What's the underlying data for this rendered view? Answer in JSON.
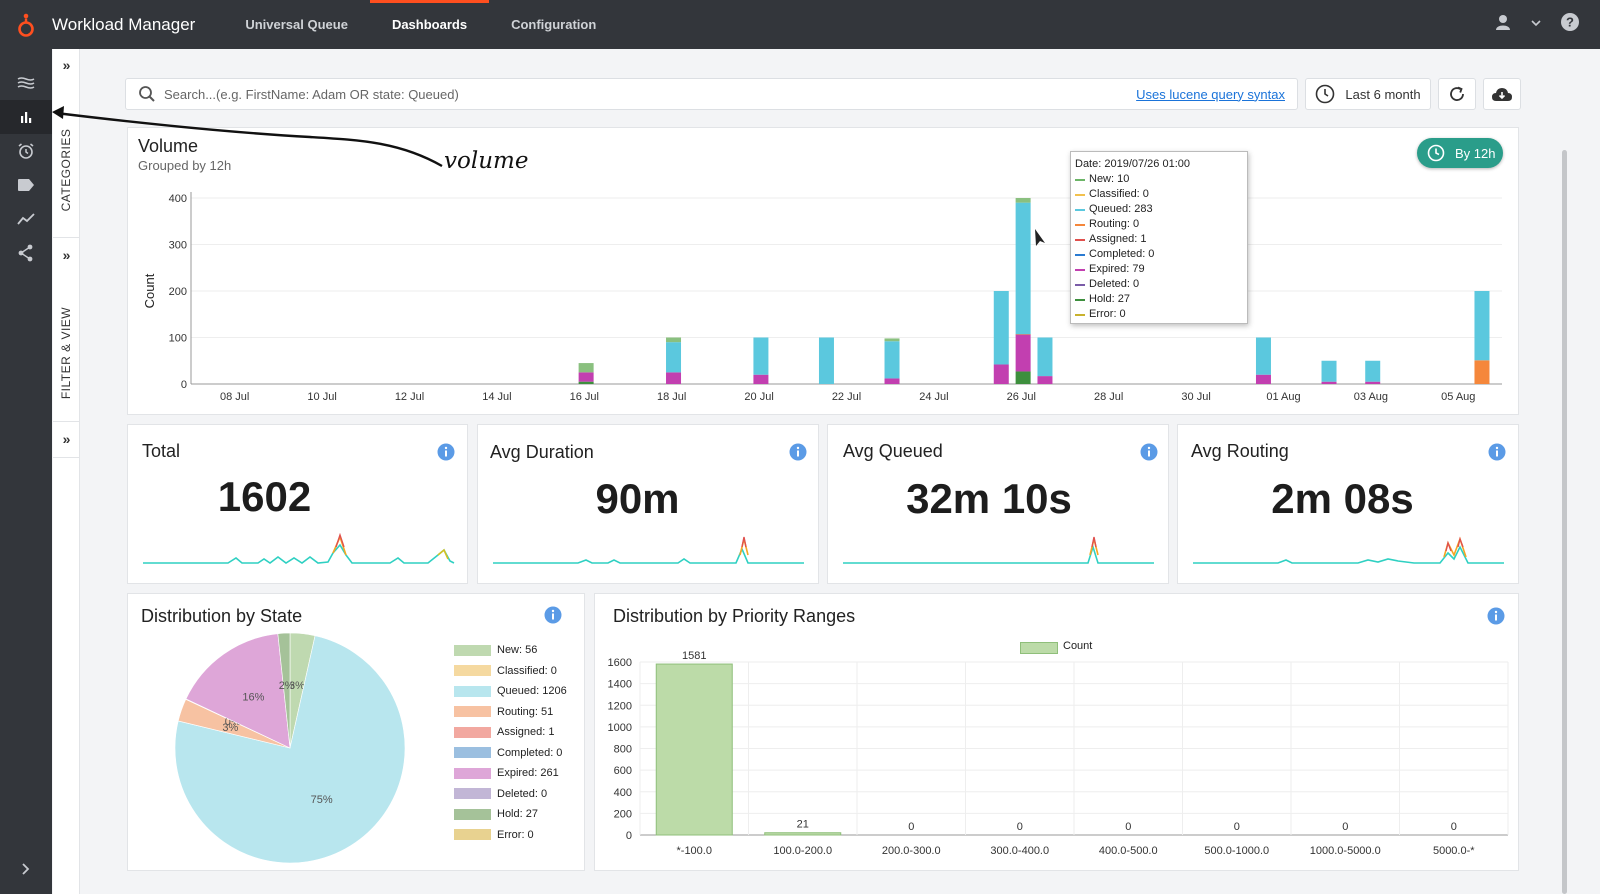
{
  "app": {
    "title": "Workload Manager"
  },
  "nav": {
    "tabs": [
      {
        "label": "Universal Queue"
      },
      {
        "label": "Dashboards"
      },
      {
        "label": "Configuration"
      }
    ]
  },
  "sidepanel": {
    "categories_label": "CATEGORIES",
    "filter_label": "FILTER & VIEW"
  },
  "search": {
    "placeholder": "Search...(e.g. FirstName: Adam OR state: Queued)",
    "value": "",
    "lucene_link": "Uses lucene query syntax"
  },
  "toolbar": {
    "time_range": "Last 6 month"
  },
  "volume": {
    "title": "Volume",
    "subtitle": "Grouped by 12h",
    "ylabel": "Count",
    "group_badge": "By 12h",
    "annotation": "volume",
    "tooltip": {
      "date": "Date: 2019/07/26 01:00",
      "rows": [
        {
          "label": "New: 10",
          "color": "#6cb567"
        },
        {
          "label": "Classified: 0",
          "color": "#f2c14e"
        },
        {
          "label": "Queued: 283",
          "color": "#5bc8de"
        },
        {
          "label": "Routing: 0",
          "color": "#f5873b"
        },
        {
          "label": "Assigned: 1",
          "color": "#e0504d"
        },
        {
          "label": "Completed: 0",
          "color": "#2b7bd2"
        },
        {
          "label": "Expired: 79",
          "color": "#c23fb0"
        },
        {
          "label": "Deleted: 0",
          "color": "#7a5ca8"
        },
        {
          "label": "Hold: 27",
          "color": "#3d8f3d"
        },
        {
          "label": "Error: 0",
          "color": "#c9b22e"
        }
      ]
    }
  },
  "chart_data": [
    {
      "type": "bar",
      "stacked": true,
      "ylim": [
        0,
        400
      ],
      "yticks": [
        0,
        100,
        200,
        300,
        400
      ],
      "xlim": [
        "2019-07-07",
        "2019-08-06"
      ],
      "xticks": [
        "08 Jul",
        "10 Jul",
        "12 Jul",
        "14 Jul",
        "16 Jul",
        "18 Jul",
        "20 Jul",
        "22 Jul",
        "24 Jul",
        "26 Jul",
        "28 Jul",
        "30 Jul",
        "01 Aug",
        "03 Aug",
        "05 Aug"
      ],
      "xtick_dates": [
        "2019-07-08",
        "2019-07-10",
        "2019-07-12",
        "2019-07-14",
        "2019-07-16",
        "2019-07-18",
        "2019-07-20",
        "2019-07-22",
        "2019-07-24",
        "2019-07-26",
        "2019-07-28",
        "2019-07-30",
        "2019-08-01",
        "2019-08-03",
        "2019-08-05"
      ],
      "series_colors": {
        "Expired": "#c23fb0",
        "Queued": "#5bc8de",
        "Routing": "#f5873b",
        "Hold": "#3d8f3d",
        "New": "#8ac07f",
        "Classified": "#c9b22e"
      },
      "bars": [
        {
          "x": "2019-07-16 01:00",
          "Expired": 20,
          "Queued": 0,
          "Hold": 5,
          "New": 20
        },
        {
          "x": "2019-07-18 01:00",
          "Expired": 25,
          "Queued": 65,
          "New": 10
        },
        {
          "x": "2019-07-20 01:00",
          "Expired": 20,
          "Queued": 80
        },
        {
          "x": "2019-07-21 13:00",
          "Queued": 100
        },
        {
          "x": "2019-07-23 01:00",
          "Expired": 12,
          "Queued": 80,
          "New": 6
        },
        {
          "x": "2019-07-25 13:00",
          "Expired": 42,
          "Queued": 158
        },
        {
          "x": "2019-07-26 01:00",
          "Hold": 27,
          "Expired": 79,
          "Assigned": 1,
          "Queued": 283,
          "New": 10
        },
        {
          "x": "2019-07-26 13:00",
          "Expired": 17,
          "Queued": 83
        },
        {
          "x": "2019-07-31 13:00",
          "Expired": 20,
          "Queued": 80
        },
        {
          "x": "2019-08-02 01:00",
          "Expired": 5,
          "Queued": 45
        },
        {
          "x": "2019-08-03 01:00",
          "Expired": 5,
          "Queued": 45
        },
        {
          "x": "2019-08-05 13:00",
          "Routing": 51,
          "Queued": 149
        }
      ]
    },
    {
      "type": "pie",
      "slices": [
        {
          "label": "New",
          "value": 56,
          "color": "#bfd9b0",
          "pct_label": "3%"
        },
        {
          "label": "Classified",
          "value": 0,
          "color": "#f5d9a0",
          "pct_label": ""
        },
        {
          "label": "Queued",
          "value": 1206,
          "color": "#b8e6ee",
          "pct_label": "75%"
        },
        {
          "label": "Routing",
          "value": 51,
          "color": "#f7c2a2",
          "pct_label": "3%"
        },
        {
          "label": "Assigned",
          "value": 1,
          "color": "#f2a8a0",
          "pct_label": "0%"
        },
        {
          "label": "Completed",
          "value": 0,
          "color": "#9bbfe0",
          "pct_label": ""
        },
        {
          "label": "Expired",
          "value": 261,
          "color": "#dea6d8",
          "pct_label": "16%"
        },
        {
          "label": "Deleted",
          "value": 0,
          "color": "#c2b6d6",
          "pct_label": ""
        },
        {
          "label": "Hold",
          "value": 27,
          "color": "#a5c299",
          "pct_label": "2%"
        },
        {
          "label": "Error",
          "value": 0,
          "color": "#e8d290",
          "pct_label": ""
        }
      ]
    },
    {
      "type": "bar",
      "title": "Distribution by Priority Ranges",
      "legend": "Count",
      "categories": [
        "*-100.0",
        "100.0-200.0",
        "200.0-300.0",
        "300.0-400.0",
        "400.0-500.0",
        "500.0-1000.0",
        "1000.0-5000.0",
        "5000.0-*"
      ],
      "values": [
        1581,
        21,
        0,
        0,
        0,
        0,
        0,
        0
      ],
      "ylim": [
        0,
        1600
      ],
      "yticks": [
        0,
        200,
        400,
        600,
        800,
        1000,
        1200,
        1400,
        1600
      ],
      "color": "#bcdba8"
    }
  ],
  "kpis": [
    {
      "title": "Total",
      "value": "1602"
    },
    {
      "title": "Avg Duration",
      "value": "90m"
    },
    {
      "title": "Avg Queued",
      "value": "32m 10s"
    },
    {
      "title": "Avg Routing",
      "value": "2m 08s"
    }
  ],
  "distribution_state": {
    "title": "Distribution by State",
    "legend": [
      "New: 56",
      "Classified: 0",
      "Queued: 1206",
      "Routing: 51",
      "Assigned: 1",
      "Completed: 0",
      "Expired: 261",
      "Deleted: 0",
      "Hold: 27",
      "Error: 0"
    ]
  },
  "distribution_priority": {
    "title": "Distribution by Priority Ranges",
    "legend": "Count"
  },
  "colors": {
    "accent": "#ff4f1f",
    "teal": "#2a9d8a",
    "info": "#4a90e2"
  }
}
